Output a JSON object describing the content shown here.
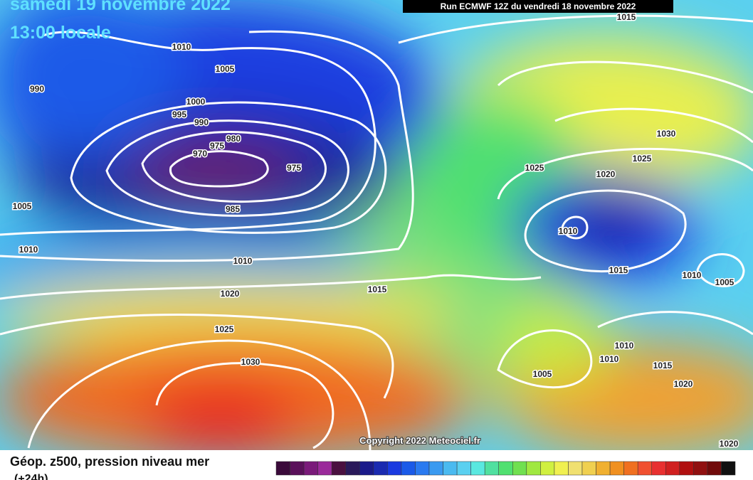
{
  "header": {
    "date": "samedi 19 novembre 2022",
    "time": "13:00 locale",
    "run": "Run ECMWF 12Z du vendredi 18 novembre 2022"
  },
  "isobar_labels": [
    "1010",
    "1005",
    "990",
    "1000",
    "995",
    "990",
    "980",
    "975",
    "970",
    "975",
    "1025",
    "1020",
    "1025",
    "1030",
    "985",
    "1005",
    "1010",
    "1010",
    "1010",
    "1015",
    "1010",
    "1005",
    "1015",
    "1020",
    "1025",
    "1030",
    "1010",
    "1010",
    "1015",
    "1005",
    "1020",
    "1020",
    "1015"
  ],
  "copyright": "Copyright 2022 Meteociel.fr",
  "legend": {
    "title": "Géop. z500, pression niveau mer",
    "subtitle": "(+24h)"
  }
}
